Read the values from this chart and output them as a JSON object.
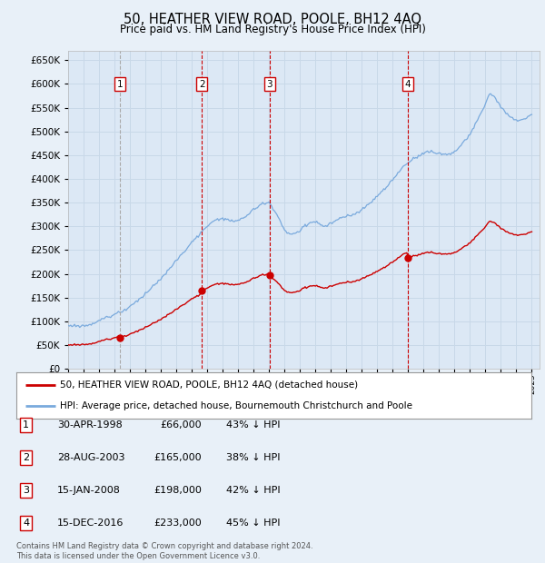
{
  "title": "50, HEATHER VIEW ROAD, POOLE, BH12 4AQ",
  "subtitle": "Price paid vs. HM Land Registry's House Price Index (HPI)",
  "bg_color": "#e8f0f8",
  "plot_bg_color": "#dce8f5",
  "grid_color": "#c8d8e8",
  "hpi_color": "#7aaadd",
  "price_color": "#cc0000",
  "vline1_color": "#aaaaaa",
  "vline_color": "#cc0000",
  "sale_points": [
    {
      "year": 1998.33,
      "price": 66000,
      "label": "1",
      "vline_style": "grey"
    },
    {
      "year": 2003.65,
      "price": 165000,
      "label": "2",
      "vline_style": "red"
    },
    {
      "year": 2008.04,
      "price": 198000,
      "label": "3",
      "vline_style": "red"
    },
    {
      "year": 2016.96,
      "price": 233000,
      "label": "4",
      "vline_style": "red"
    }
  ],
  "table_rows": [
    {
      "num": "1",
      "date": "30-APR-1998",
      "price": "£66,000",
      "hpi": "43% ↓ HPI"
    },
    {
      "num": "2",
      "date": "28-AUG-2003",
      "price": "£165,000",
      "hpi": "38% ↓ HPI"
    },
    {
      "num": "3",
      "date": "15-JAN-2008",
      "price": "£198,000",
      "hpi": "42% ↓ HPI"
    },
    {
      "num": "4",
      "date": "15-DEC-2016",
      "price": "£233,000",
      "hpi": "45% ↓ HPI"
    }
  ],
  "legend_line1": "50, HEATHER VIEW ROAD, POOLE, BH12 4AQ (detached house)",
  "legend_line2": "HPI: Average price, detached house, Bournemouth Christchurch and Poole",
  "footer": "Contains HM Land Registry data © Crown copyright and database right 2024.\nThis data is licensed under the Open Government Licence v3.0.",
  "ylim": [
    0,
    670000
  ],
  "yticks": [
    0,
    50000,
    100000,
    150000,
    200000,
    250000,
    300000,
    350000,
    400000,
    450000,
    500000,
    550000,
    600000,
    650000
  ],
  "xmin": 1995.0,
  "xmax": 2025.5
}
